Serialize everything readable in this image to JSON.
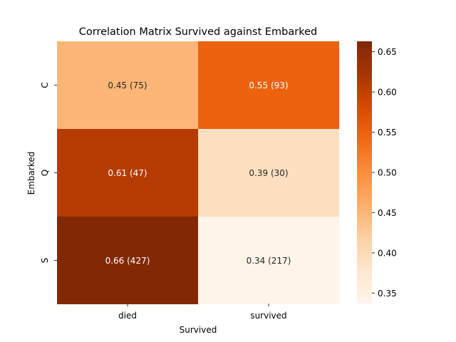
{
  "chart_data": {
    "type": "heatmap",
    "title": "Correlation Matrix Survived against Embarked",
    "xlabel": "Survived",
    "ylabel": "Embarked",
    "x_categories": [
      "died",
      "survived"
    ],
    "y_categories": [
      "C",
      "Q",
      "S"
    ],
    "values": [
      [
        0.45,
        0.55
      ],
      [
        0.61,
        0.39
      ],
      [
        0.66,
        0.34
      ]
    ],
    "annotations": [
      [
        "0.45 (75)",
        "0.55 (93)"
      ],
      [
        "0.61 (47)",
        "0.39 (30)"
      ],
      [
        "0.66 (427)",
        "0.34 (217)"
      ]
    ],
    "colormap": "Oranges",
    "colorbar": {
      "range": [
        0.337,
        0.663
      ],
      "ticks": [
        0.35,
        0.4,
        0.45,
        0.5,
        0.55,
        0.6,
        0.65
      ],
      "tick_labels": [
        "0.35",
        "0.40",
        "0.45",
        "0.50",
        "0.55",
        "0.60",
        "0.65"
      ]
    }
  }
}
